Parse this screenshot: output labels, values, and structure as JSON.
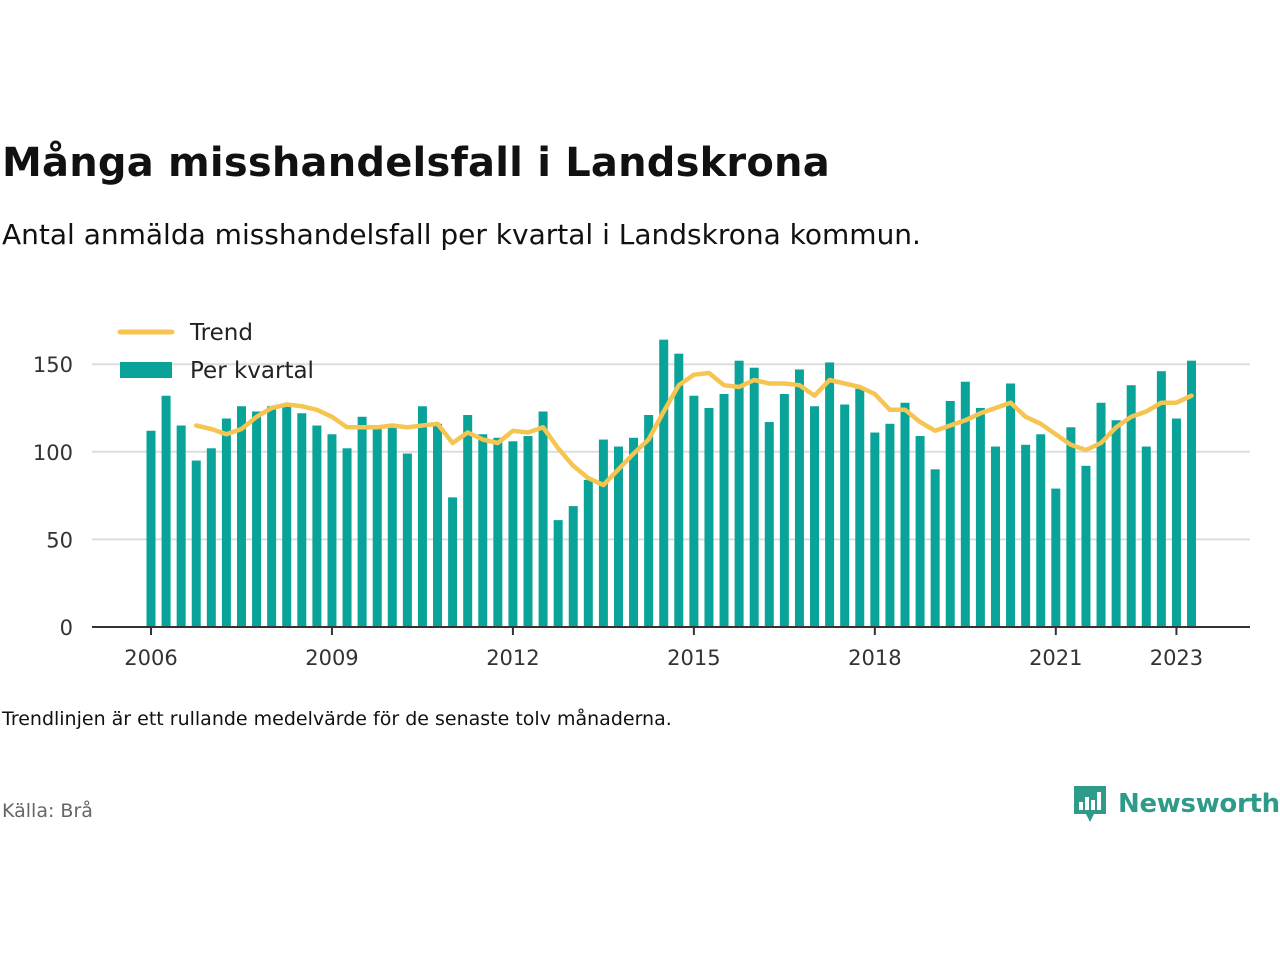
{
  "header": {
    "title": "Många misshandelsfall i Landskrona",
    "subtitle": "Antal anmälda misshandelsfall per kvartal i Landskrona kommun."
  },
  "footer": {
    "note": "Trendlinjen är ett rullande medelvärde för de senaste tolv månaderna.",
    "source": "Källa: Brå",
    "brand": "Newsworthy"
  },
  "colors": {
    "bar": "#0aa39a",
    "trend": "#f5c451",
    "grid": "#dddddd",
    "axis": "#333333",
    "brand": "#2e9b8a"
  },
  "chart_data": {
    "type": "bar",
    "title": "Många misshandelsfall i Landskrona",
    "ylim": [
      0,
      170
    ],
    "yticks": [
      0,
      50,
      100,
      150
    ],
    "xtick_labels": [
      "2006",
      "2009",
      "2012",
      "2015",
      "2018",
      "2021",
      "2023"
    ],
    "legend_position": "top-left",
    "grid": true,
    "series": [
      {
        "name": "Per kvartal",
        "type": "bar",
        "x": [
          "2006 Q1",
          "2006 Q2",
          "2006 Q3",
          "2006 Q4",
          "2007 Q1",
          "2007 Q2",
          "2007 Q3",
          "2007 Q4",
          "2008 Q1",
          "2008 Q2",
          "2008 Q3",
          "2008 Q4",
          "2009 Q1",
          "2009 Q2",
          "2009 Q3",
          "2009 Q4",
          "2010 Q1",
          "2010 Q2",
          "2010 Q3",
          "2010 Q4",
          "2011 Q1",
          "2011 Q2",
          "2011 Q3",
          "2011 Q4",
          "2012 Q1",
          "2012 Q2",
          "2012 Q3",
          "2012 Q4",
          "2013 Q1",
          "2013 Q2",
          "2013 Q3",
          "2013 Q4",
          "2014 Q1",
          "2014 Q2",
          "2014 Q3",
          "2014 Q4",
          "2015 Q1",
          "2015 Q2",
          "2015 Q3",
          "2015 Q4",
          "2016 Q1",
          "2016 Q2",
          "2016 Q3",
          "2016 Q4",
          "2017 Q1",
          "2017 Q2",
          "2017 Q3",
          "2017 Q4",
          "2018 Q1",
          "2018 Q2",
          "2018 Q3",
          "2018 Q4",
          "2019 Q1",
          "2019 Q2",
          "2019 Q3",
          "2019 Q4",
          "2020 Q1",
          "2020 Q2",
          "2020 Q3",
          "2020 Q4",
          "2021 Q1",
          "2021 Q2",
          "2021 Q3",
          "2021 Q4",
          "2022 Q1",
          "2022 Q2",
          "2022 Q3",
          "2022 Q4",
          "2023 Q1",
          "2023 Q2"
        ],
        "values": [
          112,
          132,
          115,
          95,
          102,
          119,
          126,
          123,
          126,
          126,
          122,
          115,
          110,
          102,
          120,
          113,
          116,
          99,
          126,
          116,
          74,
          121,
          110,
          108,
          106,
          109,
          123,
          61,
          69,
          84,
          107,
          103,
          108,
          121,
          164,
          156,
          132,
          125,
          133,
          152,
          148,
          117,
          133,
          147,
          126,
          151,
          127,
          136,
          111,
          116,
          128,
          109,
          90,
          129,
          140,
          125,
          103,
          139,
          104,
          110,
          79,
          114,
          92,
          128,
          118,
          138,
          103,
          146,
          119,
          152
        ]
      },
      {
        "name": "Trend",
        "type": "line",
        "x": [
          "2006 Q4",
          "2007 Q1",
          "2007 Q2",
          "2007 Q3",
          "2007 Q4",
          "2008 Q1",
          "2008 Q2",
          "2008 Q3",
          "2008 Q4",
          "2009 Q1",
          "2009 Q2",
          "2009 Q3",
          "2009 Q4",
          "2010 Q1",
          "2010 Q2",
          "2010 Q3",
          "2010 Q4",
          "2011 Q1",
          "2011 Q2",
          "2011 Q3",
          "2011 Q4",
          "2012 Q1",
          "2012 Q2",
          "2012 Q3",
          "2012 Q4",
          "2013 Q1",
          "2013 Q2",
          "2013 Q3",
          "2013 Q4",
          "2014 Q1",
          "2014 Q2",
          "2014 Q3",
          "2014 Q4",
          "2015 Q1",
          "2015 Q2",
          "2015 Q3",
          "2015 Q4",
          "2016 Q1",
          "2016 Q2",
          "2016 Q3",
          "2016 Q4",
          "2017 Q1",
          "2017 Q2",
          "2017 Q3",
          "2017 Q4",
          "2018 Q1",
          "2018 Q2",
          "2018 Q3",
          "2018 Q4",
          "2019 Q1",
          "2019 Q2",
          "2019 Q3",
          "2019 Q4",
          "2020 Q1",
          "2020 Q2",
          "2020 Q3",
          "2020 Q4",
          "2021 Q1",
          "2021 Q2",
          "2021 Q3",
          "2021 Q4",
          "2022 Q1",
          "2022 Q2",
          "2022 Q3",
          "2022 Q4",
          "2023 Q1",
          "2023 Q2"
        ],
        "values": [
          115,
          113,
          110,
          113,
          120,
          125,
          127,
          126,
          124,
          120,
          114,
          114,
          114,
          115,
          114,
          115,
          116,
          105,
          111,
          107,
          105,
          112,
          111,
          114,
          102,
          92,
          85,
          81,
          90,
          99,
          107,
          123,
          138,
          144,
          145,
          138,
          137,
          141,
          139,
          139,
          138,
          132,
          141,
          139,
          137,
          133,
          124,
          124,
          117,
          112,
          115,
          118,
          122,
          125,
          128,
          120,
          116,
          110,
          104,
          101,
          105,
          114,
          120,
          123,
          128,
          128,
          132
        ]
      }
    ]
  }
}
